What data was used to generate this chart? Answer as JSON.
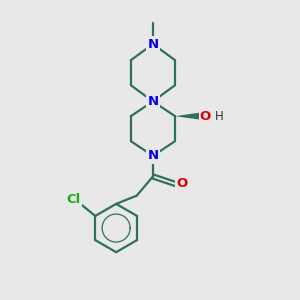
{
  "bg_color": "#e8e8e8",
  "bond_color": "#2d7060",
  "n_color": "#0000ee",
  "o_color": "#dd0000",
  "cl_color": "#22aa22",
  "h_color": "#000000",
  "line_width": 1.6,
  "fig_size": [
    3.0,
    3.0
  ],
  "dpi": 100,
  "xlim": [
    0,
    10
  ],
  "ylim": [
    0,
    10
  ]
}
